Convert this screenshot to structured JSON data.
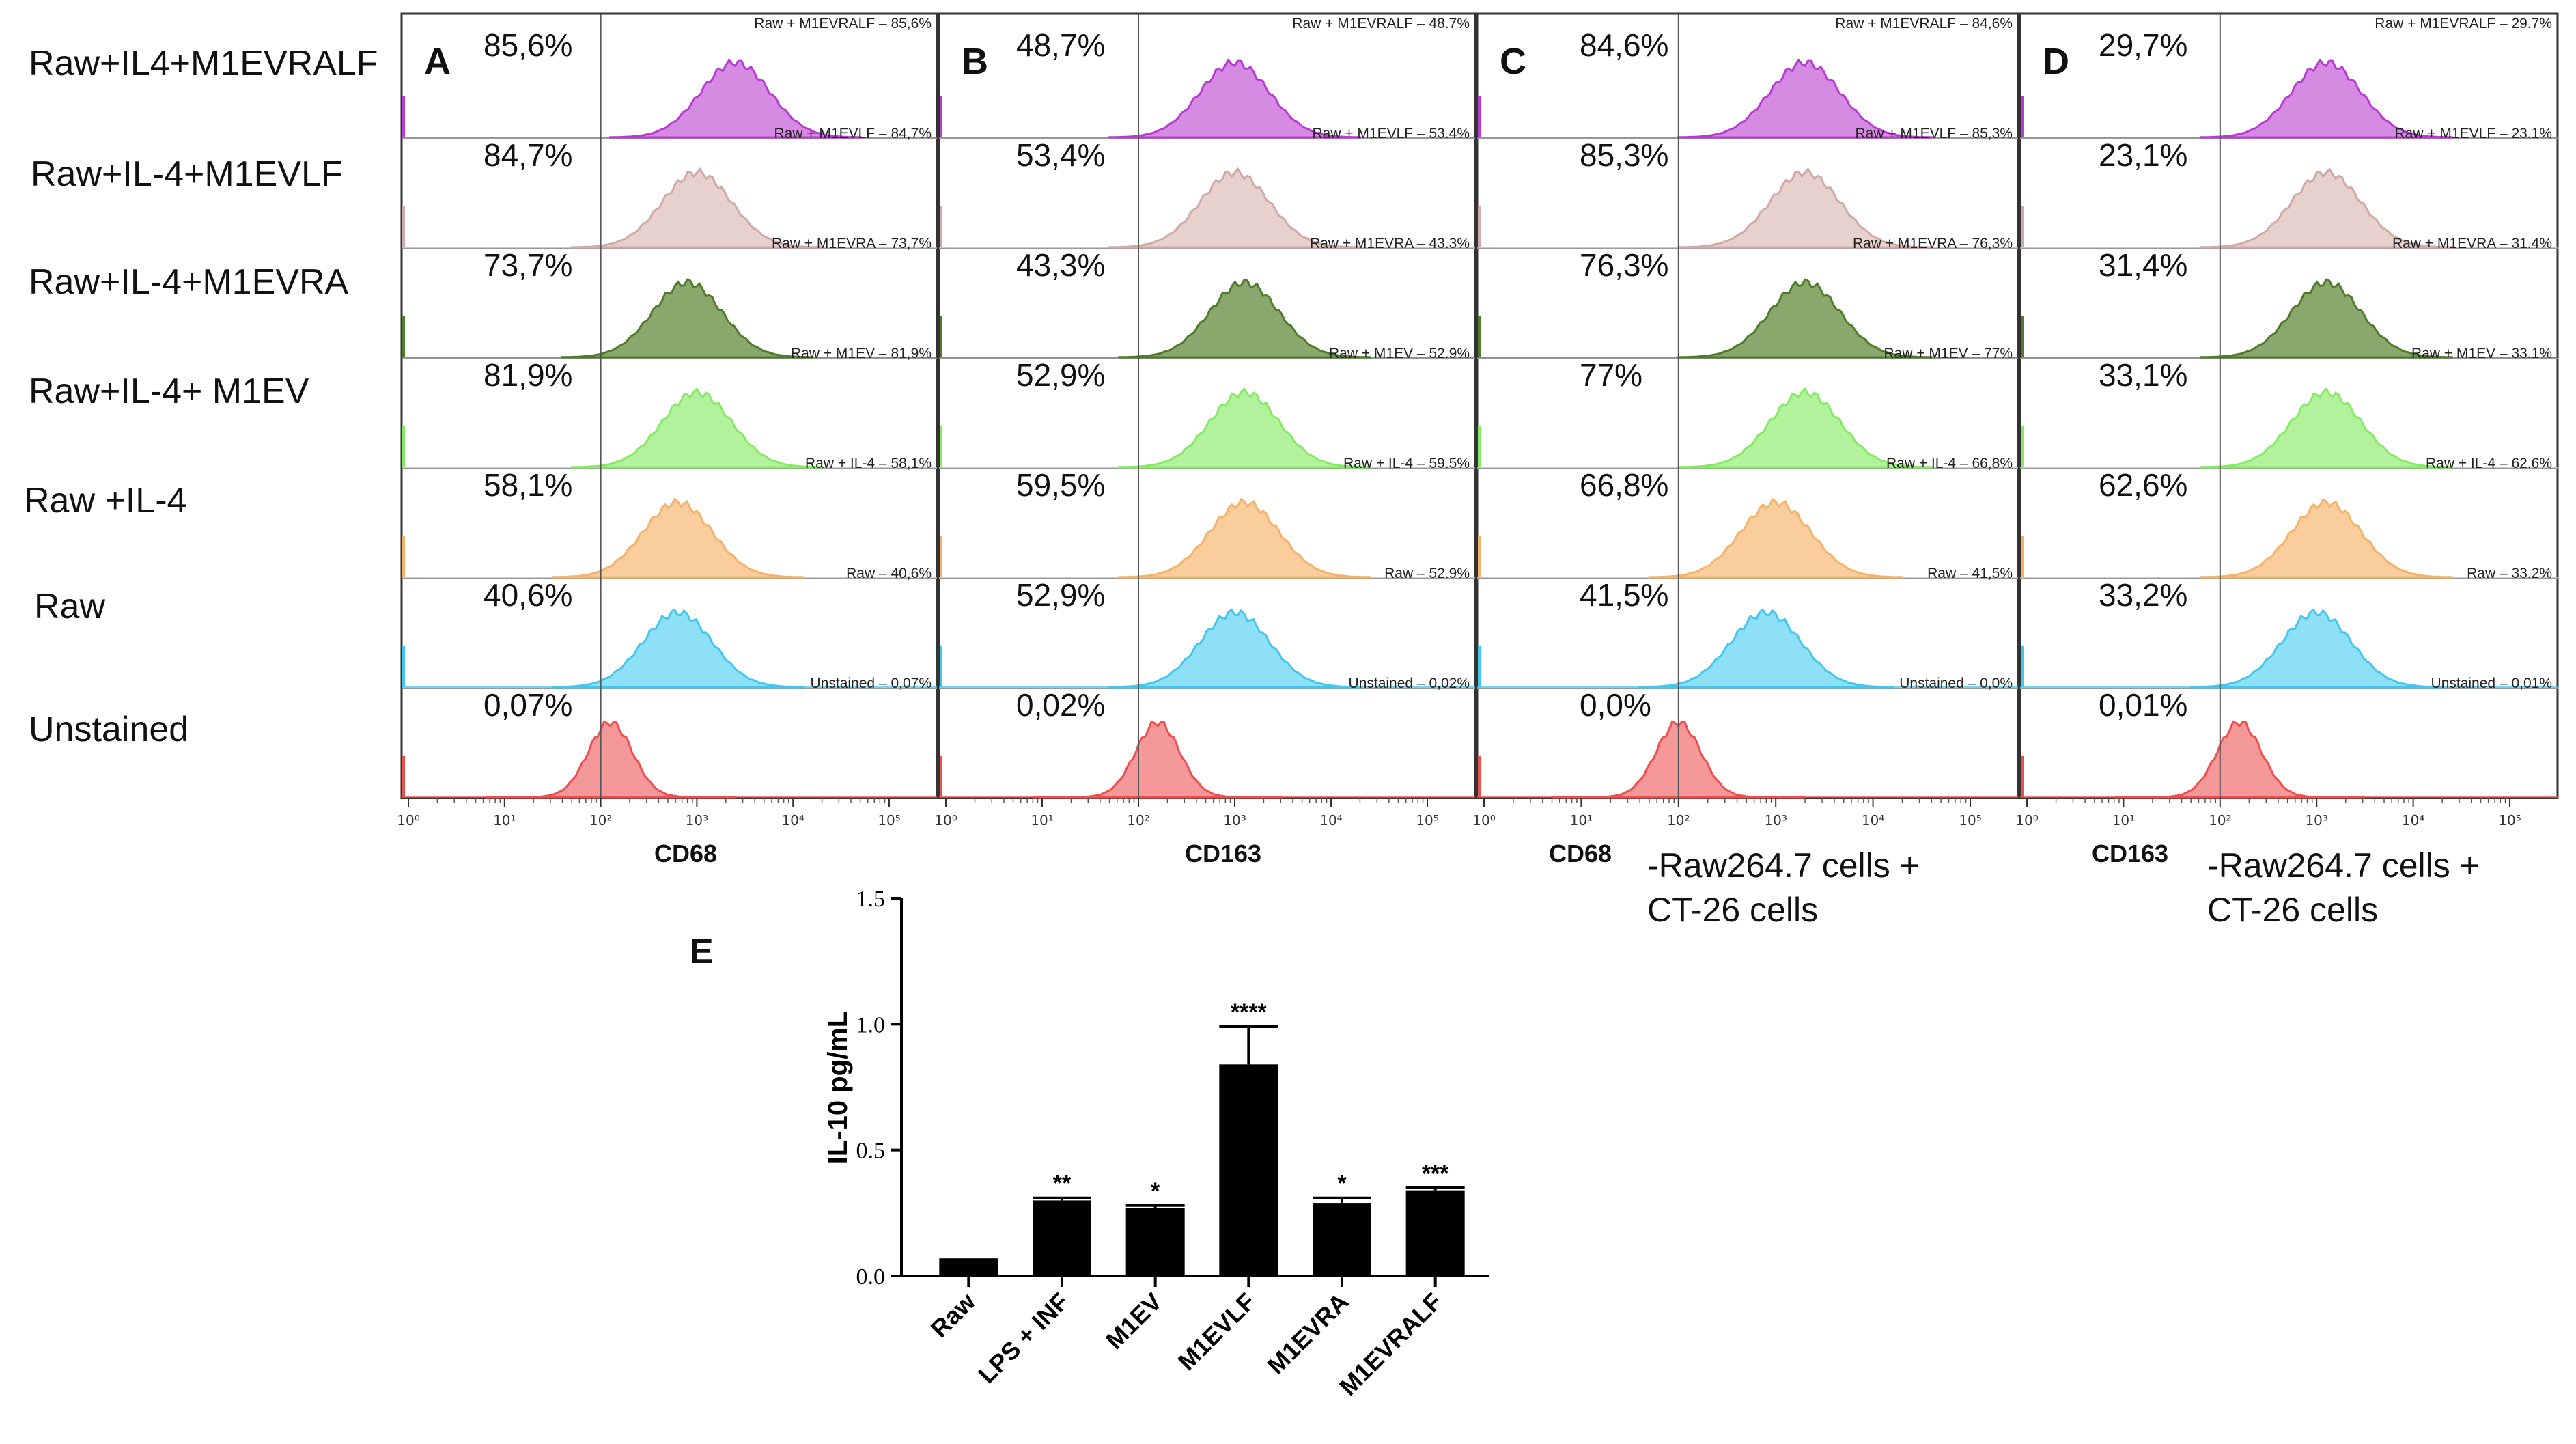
{
  "row_labels": [
    "Raw+IL4+M1EVRALF",
    "Raw+IL-4+M1EVLF",
    "Raw+IL-4+M1EVRA",
    "Raw+IL-4+ M1EV",
    "Raw +IL-4",
    "Raw",
    "Unstained"
  ],
  "colors": [
    "#b93bd1",
    "#cfaaa8",
    "#4f7b2a",
    "#86ea66",
    "#f5b26b",
    "#45c6ee",
    "#ee4f4f"
  ],
  "fill_colors": [
    "#d68be3",
    "#e7d1cd",
    "#8aa86e",
    "#b3f29c",
    "#f9cd9c",
    "#8ee0f7",
    "#f5989a"
  ],
  "ticks": [
    "10⁰",
    "10¹",
    "10²",
    "10³",
    "10⁴",
    "10⁵"
  ],
  "panels": [
    {
      "letter": "A",
      "marker": "CD68",
      "peaks": [
        3.4,
        3.0,
        2.9,
        3.0,
        2.8,
        2.8,
        2.1
      ],
      "pct": [
        "85,6%",
        "84,7%",
        "73,7%",
        "81,9%",
        "58,1%",
        "40,6%",
        "0,07%"
      ],
      "tags": [
        "Raw + M1EVRALF – 85,6%",
        "Raw + M1EVLF – 84,7%",
        "Raw + M1EVRA – 73,7%",
        "Raw + M1EV – 81,9%",
        "Raw + IL-4 – 58,1%",
        "Raw – 40,6%",
        "Unstained – 0,07%"
      ]
    },
    {
      "letter": "B",
      "marker": "CD163",
      "peaks": [
        3.0,
        3.0,
        3.1,
        3.1,
        3.1,
        3.0,
        2.2
      ],
      "pct": [
        "48,7%",
        "53,4%",
        "43,3%",
        "52,9%",
        "59,5%",
        "52,9%",
        "0,02%"
      ],
      "tags": [
        "Raw + M1EVRALF – 48.7%",
        "Raw + M1EVLF – 53.4%",
        "Raw + M1EVRA – 43.3%",
        "Raw + M1EV – 52.9%",
        "Raw + IL-4 – 59.5%",
        "Raw – 52.9%",
        "Unstained – 0,02%"
      ]
    },
    {
      "letter": "C",
      "marker": "CD68",
      "peaks": [
        3.3,
        3.3,
        3.3,
        3.3,
        3.0,
        2.9,
        2.0
      ],
      "pct": [
        "84,6%",
        "85,3%",
        "76,3%",
        "77%",
        "66,8%",
        "41,5%",
        "0,0%"
      ],
      "tags": [
        "Raw + M1EVRALF – 84,6%",
        "Raw + M1EVLF – 85,3%",
        "Raw + M1EVRA – 76,3%",
        "Raw + M1EV – 77%",
        "Raw + IL-4 – 66,8%",
        "Raw – 41,5%",
        "Unstained – 0,0%"
      ],
      "note": "-Raw264.7 cells +\nCT-26 cells"
    },
    {
      "letter": "D",
      "marker": "CD163",
      "peaks": [
        3.1,
        3.1,
        3.1,
        3.1,
        3.1,
        3.0,
        2.2
      ],
      "pct": [
        "29,7%",
        "23,1%",
        "31,4%",
        "33,1%",
        "62,6%",
        "33,2%",
        "0,01%"
      ],
      "tags": [
        "Raw + M1EVRALF – 29.7%",
        "Raw + M1EVLF – 23.1%",
        "Raw + M1EVRA – 31.4%",
        "Raw + M1EV – 33.1%",
        "Raw + IL-4 – 62.6%",
        "Raw – 33.2%",
        "Unstained – 0,01%"
      ],
      "note": "-Raw264.7 cells +\nCT-26 cells"
    }
  ],
  "chart_data": [
    {
      "type": "area",
      "title": "A",
      "xlabel": "CD68",
      "xscale": "log",
      "xlim": [
        1,
        100000
      ],
      "series": [
        {
          "name": "Raw+IL4+M1EVRALF"
        },
        {
          "name": "Raw+IL-4+M1EVLF"
        },
        {
          "name": "Raw+IL-4+M1EVRA"
        },
        {
          "name": "Raw+IL-4+ M1EV"
        },
        {
          "name": "Raw +IL-4"
        },
        {
          "name": "Raw"
        },
        {
          "name": "Unstained"
        }
      ],
      "values": [
        "85,6%",
        "84,7%",
        "73,7%",
        "81,9%",
        "58,1%",
        "40,6%",
        "0,07%"
      ]
    },
    {
      "type": "area",
      "title": "B",
      "xlabel": "CD163",
      "xscale": "log",
      "xlim": [
        1,
        100000
      ],
      "values": [
        "48,7%",
        "53,4%",
        "43,3%",
        "52,9%",
        "59,5%",
        "52,9%",
        "0,02%"
      ]
    },
    {
      "type": "area",
      "title": "C",
      "xlabel": "CD68",
      "xscale": "log",
      "xlim": [
        1,
        100000
      ],
      "values": [
        "84,6%",
        "85,3%",
        "76,3%",
        "77%",
        "66,8%",
        "41,5%",
        "0,0%"
      ]
    },
    {
      "type": "area",
      "title": "D",
      "xlabel": "CD163",
      "xscale": "log",
      "xlim": [
        1,
        100000
      ],
      "values": [
        "29,7%",
        "23,1%",
        "31,4%",
        "33,1%",
        "62,6%",
        "33,2%",
        "0,01%"
      ]
    },
    {
      "type": "bar",
      "title": "E",
      "ylabel": "IL-10 pg/mL",
      "ylim": [
        0,
        1.5
      ],
      "yticks": [
        "0.0",
        "0.5",
        "1.0",
        "1.5"
      ],
      "categories": [
        "Raw",
        "LPS + INF",
        "M1EV",
        "M1EVLF",
        "M1EVRA",
        "M1EVRALF"
      ],
      "values": [
        0.07,
        0.3,
        0.27,
        0.84,
        0.29,
        0.34
      ],
      "errors": [
        0.0,
        0.01,
        0.01,
        0.15,
        0.02,
        0.01
      ],
      "annotations": [
        "",
        "**",
        "*",
        "****",
        "*",
        "***"
      ]
    }
  ]
}
